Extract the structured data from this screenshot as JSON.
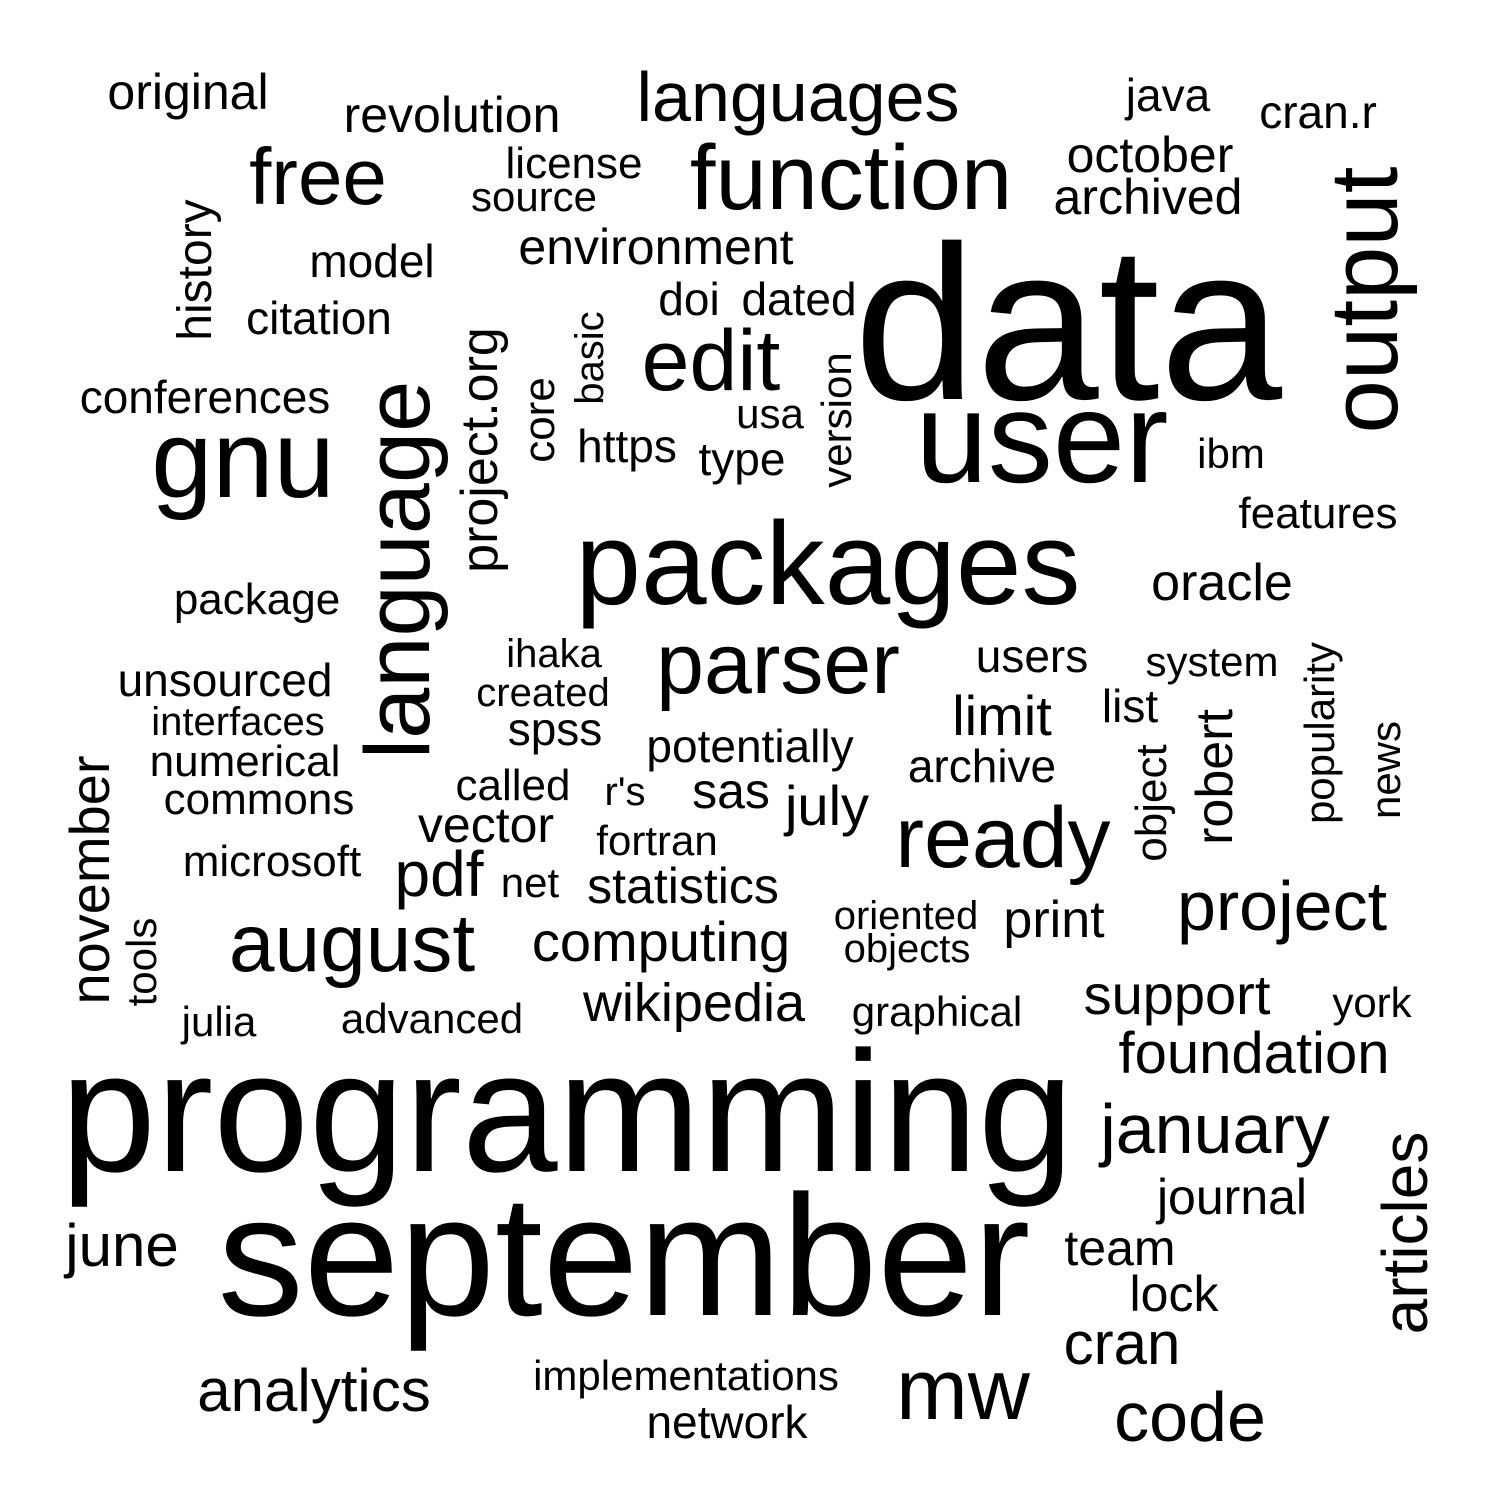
{
  "words": [
    "data",
    "programming",
    "september",
    "packages",
    "user",
    "gnu",
    "language",
    "output",
    "function",
    "parser",
    "ready",
    "edit",
    "august",
    "free",
    "mw",
    "languages",
    "project",
    "code",
    "january",
    "articles",
    "analytics",
    "foundation",
    "cran",
    "pdf",
    "november",
    "computing",
    "support",
    "wikipedia",
    "statistics",
    "project.org",
    "june",
    "revolution",
    "environment",
    "limit",
    "july",
    "original",
    "oracle",
    "journal",
    "team",
    "lock",
    "vector",
    "sas",
    "potentially",
    "archived",
    "october",
    "cran.r",
    "java",
    "license",
    "source",
    "model",
    "citation",
    "history",
    "conferences",
    "unsourced",
    "package",
    "interfaces",
    "numerical",
    "commons",
    "microsoft",
    "tools",
    "julia",
    "advanced",
    "implementations",
    "network",
    "doi",
    "dated",
    "basic",
    "core",
    "https",
    "usa",
    "type",
    "version",
    "ibm",
    "features",
    "ihaka",
    "created",
    "spss",
    "called",
    "r's",
    "fortran",
    "net",
    "oriented",
    "objects",
    "print",
    "graphical",
    "users",
    "system",
    "list",
    "archive",
    "object",
    "robert",
    "popularity",
    "news",
    "york"
  ]
}
